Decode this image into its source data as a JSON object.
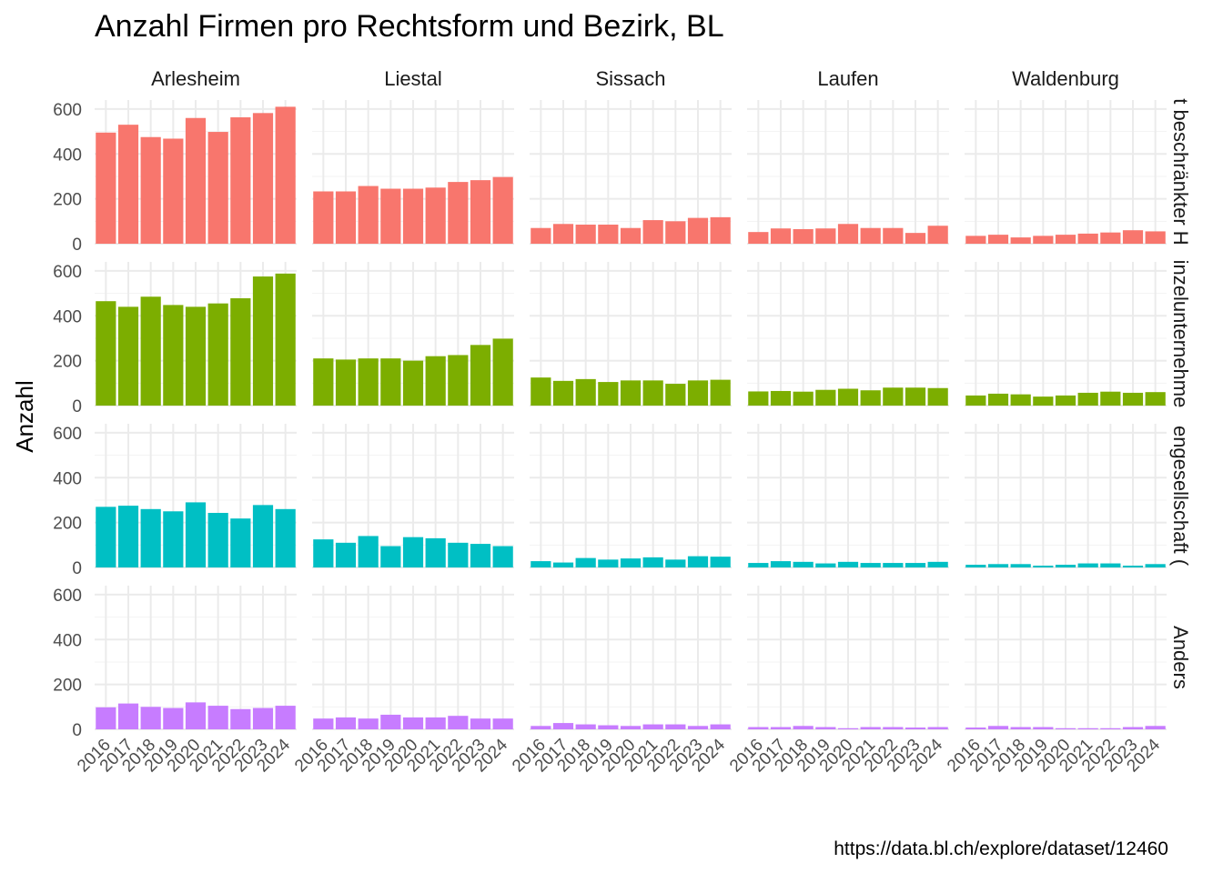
{
  "chart_data": {
    "type": "bar",
    "title": "Anzahl Firmen pro Rechtsform und Bezirk, BL",
    "ylabel": "Anzahl",
    "xlabel": "",
    "caption": "https://data.bl.ch/explore/dataset/12460",
    "ylim": [
      0,
      640
    ],
    "yticks": [
      0,
      200,
      400,
      600
    ],
    "x": [
      "2016",
      "2017",
      "2018",
      "2019",
      "2020",
      "2021",
      "2022",
      "2023",
      "2024"
    ],
    "columns": [
      "Arlesheim",
      "Liestal",
      "Sissach",
      "Laufen",
      "Waldenburg"
    ],
    "rows": [
      {
        "label": "t beschränkter H",
        "color": "#F8766D"
      },
      {
        "label": "inzelunternehme",
        "color": "#7CAE00"
      },
      {
        "label": "engesellschaft (",
        "color": "#00BFC4"
      },
      {
        "label": "Anders",
        "color": "#C77CFF"
      }
    ],
    "values": [
      [
        [
          495,
          530,
          475,
          468,
          560,
          498,
          563,
          582,
          610
        ],
        [
          233,
          233,
          257,
          245,
          245,
          250,
          275,
          283,
          297
        ],
        [
          70,
          88,
          85,
          85,
          70,
          105,
          100,
          115,
          118
        ],
        [
          52,
          68,
          65,
          68,
          88,
          70,
          70,
          48,
          80
        ],
        [
          35,
          40,
          28,
          35,
          40,
          45,
          50,
          60,
          55
        ]
      ],
      [
        [
          465,
          440,
          485,
          448,
          440,
          455,
          478,
          575,
          588
        ],
        [
          210,
          205,
          210,
          210,
          200,
          220,
          225,
          270,
          298
        ],
        [
          125,
          110,
          118,
          105,
          112,
          112,
          97,
          112,
          115
        ],
        [
          63,
          65,
          62,
          70,
          75,
          68,
          80,
          80,
          78
        ],
        [
          45,
          53,
          50,
          40,
          45,
          57,
          62,
          57,
          60
        ]
      ],
      [
        [
          270,
          275,
          260,
          250,
          290,
          243,
          218,
          278,
          260
        ],
        [
          125,
          110,
          140,
          95,
          135,
          130,
          110,
          105,
          95
        ],
        [
          28,
          22,
          42,
          35,
          40,
          45,
          35,
          50,
          48
        ],
        [
          20,
          28,
          25,
          18,
          25,
          20,
          20,
          20,
          25
        ],
        [
          12,
          15,
          15,
          8,
          12,
          18,
          18,
          8,
          15
        ]
      ],
      [
        [
          98,
          115,
          100,
          95,
          120,
          105,
          90,
          95,
          105
        ],
        [
          48,
          53,
          48,
          65,
          53,
          53,
          60,
          48,
          48
        ],
        [
          15,
          28,
          22,
          18,
          15,
          22,
          22,
          15,
          22
        ],
        [
          10,
          10,
          15,
          10,
          5,
          10,
          10,
          8,
          10
        ],
        [
          8,
          15,
          10,
          10,
          5,
          5,
          5,
          10,
          15
        ]
      ]
    ]
  }
}
